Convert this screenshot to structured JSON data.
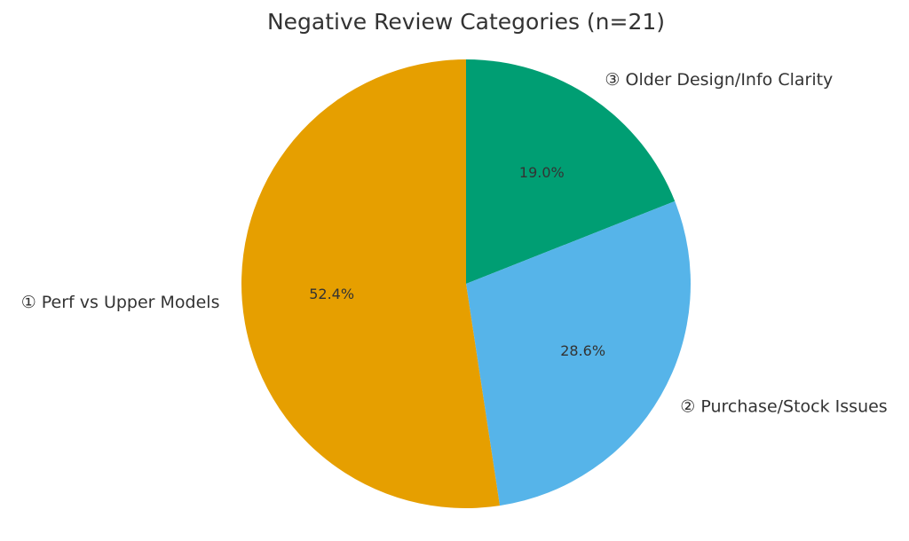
{
  "chart_data": {
    "type": "pie",
    "title": "Negative Review Categories (n=21)",
    "start_angle_deg": 90,
    "direction": "clockwise",
    "slices": [
      {
        "label": "③ Older Design/Info Clarity",
        "value": 19.0,
        "pct_label": "19.0%",
        "color": "#009E73"
      },
      {
        "label": "② Purchase/Stock Issues",
        "value": 28.6,
        "pct_label": "28.6%",
        "color": "#56B4E9"
      },
      {
        "label": "① Perf vs Upper Models",
        "value": 52.4,
        "pct_label": "52.4%",
        "color": "#E69F00"
      }
    ]
  }
}
